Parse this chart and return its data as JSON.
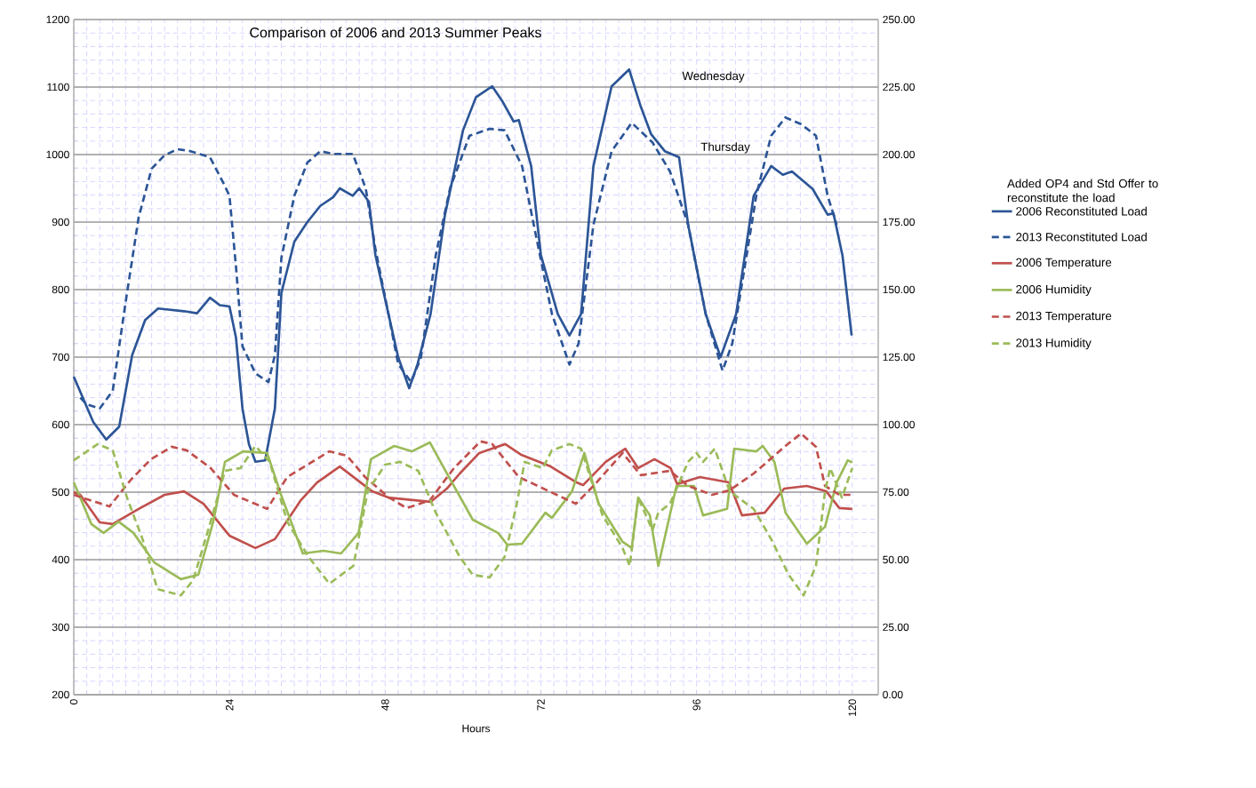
{
  "chart_data": {
    "type": "line",
    "title": "Comparison of 2006 and 2013 Summer Peaks",
    "xlabel": "Hours",
    "xlim": [
      0,
      124
    ],
    "xticks": [
      0,
      24,
      48,
      72,
      96,
      120
    ],
    "ylim": [
      200,
      1200
    ],
    "yticks": [
      200,
      300,
      400,
      500,
      600,
      700,
      800,
      900,
      1000,
      1100,
      1200
    ],
    "y2lim": [
      0,
      250
    ],
    "y2ticks": [
      {
        "value": 0,
        "label": "0.00"
      },
      {
        "value": 25,
        "label": "25.00"
      },
      {
        "value": 50,
        "label": "50.00"
      },
      {
        "value": 75,
        "label": "75.00"
      },
      {
        "value": 100,
        "label": "100.00"
      },
      {
        "value": 125,
        "label": "125.00"
      },
      {
        "value": 150,
        "label": "150.00"
      },
      {
        "value": 175,
        "label": "175.00"
      },
      {
        "value": 200,
        "label": "200.00"
      },
      {
        "value": 225,
        "label": "225.00"
      },
      {
        "value": 250,
        "label": "250.00"
      }
    ],
    "grid": true,
    "legend": "right",
    "annotations": [
      "Wednesday",
      "Thursday",
      "Added OP4 and Std Offer to reconstitute the load"
    ],
    "series": [
      {
        "name": "2006 Reconstituted Load",
        "color": "#2c5596",
        "line_style": "solid",
        "axis": "y",
        "x": [
          0,
          3,
          5,
          7,
          9,
          11,
          13,
          17,
          19,
          21,
          22.5,
          24,
          25,
          26,
          27,
          28,
          29.5,
          31,
          32,
          34,
          36,
          38,
          40,
          41,
          43,
          44,
          45.5,
          46.5,
          48.5,
          50,
          51.7,
          53,
          55,
          57.2,
          60,
          62,
          64.5,
          66,
          67.8,
          68.6,
          70.5,
          72,
          74.6,
          76.4,
          78.2,
          80.1,
          82.9,
          85.6,
          87.4,
          89,
          91.1,
          93.3,
          94.7,
          97.4,
          99.7,
          102.1,
          104.8,
          107.5,
          109.3,
          110.7,
          113.9,
          116.2,
          117.1,
          118.5,
          119.9
        ],
        "values": [
          671,
          604,
          578,
          597,
          703,
          755,
          772,
          768,
          765,
          788,
          777,
          775,
          729,
          624,
          571,
          545,
          547,
          624,
          795,
          871,
          900,
          924,
          937,
          950,
          939,
          950,
          930,
          851,
          764,
          700,
          654,
          690,
          764,
          910,
          1036,
          1085,
          1101,
          1080,
          1049,
          1051,
          983,
          851,
          764,
          732,
          764,
          983,
          1101,
          1126,
          1071,
          1030,
          1005,
          996,
          896,
          764,
          700,
          764,
          939,
          983,
          970,
          975,
          949,
          911,
          913,
          850,
          732
        ]
      },
      {
        "name": "2013 Reconstituted Load",
        "color": "#2c5596",
        "line_style": "dashed",
        "axis": "y",
        "x": [
          1,
          2,
          4,
          6,
          8,
          10,
          12,
          14,
          16,
          18,
          21,
          23,
          24,
          25,
          26,
          28,
          30,
          31,
          32,
          34,
          36,
          38,
          40,
          43,
          45,
          46.5,
          48.5,
          50,
          52,
          53.5,
          55.8,
          58,
          61,
          64.1,
          66.4,
          69.1,
          70.9,
          73.7,
          76.4,
          77.8,
          80.1,
          82.9,
          86,
          89.2,
          91.9,
          94.7,
          97.4,
          100,
          101.5,
          105.2,
          107.5,
          109.7,
          112.1,
          114.4,
          116.2,
          117.6
        ],
        "values": [
          640,
          630,
          624,
          650,
          782,
          907,
          979,
          999,
          1008,
          1005,
          996,
          959,
          939,
          834,
          716,
          676,
          663,
          703,
          847,
          939,
          988,
          1005,
          1001,
          1001,
          950,
          860,
          764,
          690,
          663,
          699,
          851,
          950,
          1028,
          1038,
          1036,
          983,
          896,
          764,
          689,
          720,
          896,
          1005,
          1047,
          1018,
          975,
          896,
          764,
          680,
          720,
          939,
          1028,
          1055,
          1045,
          1028,
          939,
          896
        ]
      },
      {
        "name": "2006 Temperature",
        "color": "#c0504d",
        "line_style": "solid",
        "axis": "y2",
        "x": [
          0,
          1,
          4,
          6,
          10,
          14,
          17,
          20,
          24,
          28,
          31,
          35,
          37.5,
          41,
          46,
          48.5,
          55,
          57.5,
          59.5,
          62.5,
          66.5,
          69,
          73.5,
          77.5,
          78.5,
          82,
          85,
          87,
          89.5,
          92,
          93,
          96.5,
          101,
          103,
          106.5,
          109.5,
          113,
          116,
          118,
          120
        ],
        "values": [
          75,
          74,
          63.8,
          63.2,
          68.8,
          74,
          75.3,
          70.7,
          58.9,
          54.3,
          57.6,
          72,
          78.6,
          84.5,
          75.3,
          73,
          71.4,
          76.3,
          81.9,
          89.5,
          92.8,
          88.8,
          84.5,
          78.6,
          77.6,
          86.2,
          91.1,
          83.9,
          87.2,
          83.9,
          78,
          80.6,
          78.6,
          66.4,
          67.4,
          76.3,
          77.3,
          75.3,
          69.1,
          68.8
        ]
      },
      {
        "name": "2006 Humidity",
        "color": "#9bbb59",
        "line_style": "solid",
        "axis": "y2",
        "x": [
          0,
          2.7,
          4.6,
          6.9,
          9.2,
          12.4,
          16.5,
          19.2,
          21.5,
          23.3,
          26.1,
          29.8,
          32.1,
          35.3,
          38.5,
          41.2,
          43.9,
          45.8,
          49.4,
          52.1,
          54.9,
          57.4,
          61.5,
          65.4,
          66.8,
          69.1,
          72.7,
          73.7,
          76.8,
          78.7,
          80.9,
          84.6,
          86,
          87,
          88.8,
          90.1,
          92.9,
          95.6,
          97,
          100.7,
          101.8,
          105.2,
          106.2,
          108,
          109.7,
          113,
          115.8,
          117.6,
          119.3,
          120
        ],
        "values": [
          78.6,
          63.2,
          59.9,
          64.1,
          59.9,
          49,
          42.8,
          44.4,
          64.1,
          86.2,
          90.1,
          89.5,
          73,
          52.3,
          53.3,
          52.3,
          59.9,
          87.2,
          92.1,
          90.1,
          93.4,
          82.4,
          64.8,
          59.9,
          55.6,
          55.9,
          67.4,
          65.5,
          75.3,
          89.5,
          70.7,
          56.6,
          54.3,
          73,
          66.4,
          47.7,
          77.3,
          77.3,
          66.4,
          68.8,
          91.1,
          90.1,
          92.1,
          86.2,
          67.4,
          55.9,
          62.2,
          78.6,
          86.8,
          86
        ]
      },
      {
        "name": "2013 Temperature",
        "color": "#c0504d",
        "line_style": "dashed",
        "axis": "y2",
        "x": [
          0,
          5.5,
          8.8,
          11.9,
          15.1,
          17.4,
          21.1,
          24.7,
          29.8,
          32.9,
          39.4,
          42.1,
          44.9,
          48.6,
          51.3,
          54.9,
          58.6,
          62.7,
          64.5,
          68.6,
          73.3,
          77.4,
          80.1,
          84.6,
          87.4,
          91.9,
          94.7,
          98.4,
          101.1,
          104.8,
          109.7,
          112.1,
          114.4,
          115.8,
          118,
          120
        ],
        "values": [
          74,
          69.7,
          79.6,
          87.2,
          91.8,
          90.5,
          83.9,
          74,
          68.8,
          80.6,
          90.1,
          88.5,
          80.6,
          73,
          69.1,
          72,
          83.9,
          93.8,
          92.8,
          80.6,
          75.3,
          70.7,
          77.3,
          89.5,
          81.3,
          82.9,
          77.3,
          74,
          75.7,
          81.9,
          92.1,
          96.7,
          91.8,
          77.3,
          74,
          74
        ]
      },
      {
        "name": "2013 Humidity",
        "color": "#9bbb59",
        "line_style": "dashed",
        "axis": "y2",
        "x": [
          0,
          3.7,
          6,
          8.2,
          10.6,
          12.9,
          16.5,
          18.4,
          21.1,
          23.3,
          25.7,
          28,
          30.2,
          32.9,
          36.2,
          39.4,
          43.1,
          45.3,
          48,
          50.3,
          53.1,
          55.8,
          57.5,
          59.5,
          61.5,
          64.1,
          66.4,
          68.2,
          69.5,
          72.3,
          73.7,
          76.4,
          78.2,
          81.5,
          84.6,
          85.7,
          87,
          89.2,
          90.1,
          91.9,
          94.7,
          96,
          97,
          98.8,
          101.1,
          104.8,
          107.5,
          110.2,
          112.5,
          114.4,
          115.8,
          116.6,
          118.4,
          120
        ],
        "values": [
          86.8,
          92.8,
          90.5,
          73,
          57.6,
          39.1,
          36.8,
          42.4,
          64.1,
          82.9,
          83.9,
          92.1,
          86.2,
          64.1,
          51,
          41.1,
          47.7,
          75.3,
          85.2,
          86.2,
          82.9,
          67.4,
          60,
          51,
          44.4,
          43.4,
          51,
          69.7,
          86.2,
          83.9,
          90.5,
          92.8,
          91.1,
          66.4,
          54.3,
          47.7,
          73,
          60.9,
          67.4,
          70.7,
          86.2,
          89.5,
          86.2,
          91.1,
          75.3,
          68.8,
          57.6,
          44.4,
          36.8,
          47.7,
          75.3,
          83.9,
          73,
          83.9
        ]
      }
    ]
  }
}
